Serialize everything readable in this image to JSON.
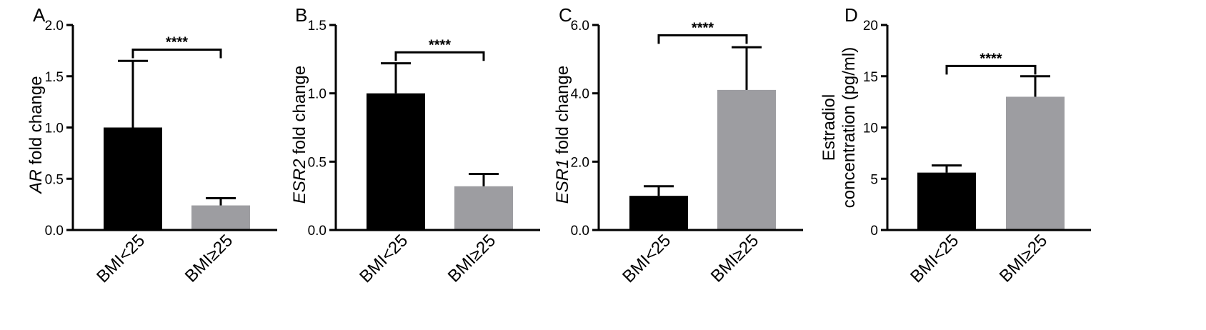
{
  "chart_data": [
    {
      "type": "bar",
      "panel_label": "A",
      "ylabel_italic": "AR",
      "ylabel_rest": " fold change",
      "categories": [
        "BMI<25",
        "BMI≥25"
      ],
      "values": [
        1.0,
        0.24
      ],
      "errors_upper": [
        1.65,
        0.31
      ],
      "ylim": [
        0,
        2.0
      ],
      "yticks": [
        0.0,
        0.5,
        1.0,
        1.5,
        2.0
      ],
      "ytick_labels": [
        "0.0",
        "0.5",
        "1.0",
        "1.5",
        "2.0"
      ],
      "significance": "****",
      "bracket_y": 1.76,
      "bar_colors": [
        "#000000",
        "#9d9da1"
      ]
    },
    {
      "type": "bar",
      "panel_label": "B",
      "ylabel_italic": "ESR2",
      "ylabel_rest": " fold change",
      "categories": [
        "BMI<25",
        "BMI≥25"
      ],
      "values": [
        1.0,
        0.32
      ],
      "errors_upper": [
        1.22,
        0.41
      ],
      "ylim": [
        0,
        1.5
      ],
      "yticks": [
        0.0,
        0.5,
        1.0,
        1.5
      ],
      "ytick_labels": [
        "0.0",
        "0.5",
        "1.0",
        "1.5"
      ],
      "significance": "****",
      "bracket_y": 1.3,
      "bar_colors": [
        "#000000",
        "#9d9da1"
      ]
    },
    {
      "type": "bar",
      "panel_label": "C",
      "ylabel_italic": "ESR1",
      "ylabel_rest": " fold change",
      "categories": [
        "BMI<25",
        "BMI≥25"
      ],
      "values": [
        1.0,
        4.1
      ],
      "errors_upper": [
        1.28,
        5.35
      ],
      "ylim": [
        0,
        6.0
      ],
      "yticks": [
        0.0,
        2.0,
        4.0,
        6.0
      ],
      "ytick_labels": [
        "0.0",
        "2.0",
        "4.0",
        "6.0"
      ],
      "significance": "****",
      "bracket_y": 5.7,
      "bar_colors": [
        "#000000",
        "#9d9da1"
      ]
    },
    {
      "type": "bar",
      "panel_label": "D",
      "ylabel_lines": [
        "Estradiol",
        "concentration (pg/ml)"
      ],
      "categories": [
        "BMI<25",
        "BMI≥25"
      ],
      "values": [
        5.6,
        13.0
      ],
      "errors_upper": [
        6.3,
        15.0
      ],
      "ylim": [
        0,
        20
      ],
      "yticks": [
        0,
        5,
        10,
        15,
        20
      ],
      "ytick_labels": [
        "0",
        "5",
        "10",
        "15",
        "20"
      ],
      "significance": "****",
      "bracket_y": 16.0,
      "bar_colors": [
        "#000000",
        "#9d9da1"
      ]
    }
  ]
}
